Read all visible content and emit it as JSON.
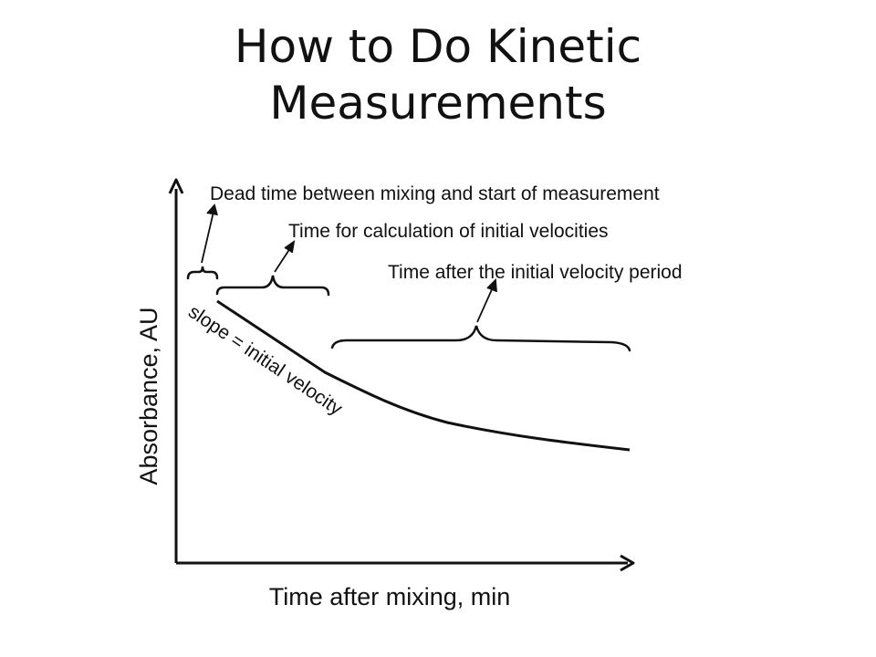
{
  "slide": {
    "title_line1": "How to Do Kinetic",
    "title_line2": "Measurements"
  },
  "diagram": {
    "y_axis_label": "Absorbance, AU",
    "x_axis_label": "Time after mixing, min",
    "curve_label": "slope = initial velocity",
    "annotations": {
      "dead_time": "Dead time between mixing and start of measurement",
      "initial_velocity_time": "Time for calculation of initial velocities",
      "after_period": "Time after the initial velocity period"
    },
    "line_color": "#111111"
  }
}
